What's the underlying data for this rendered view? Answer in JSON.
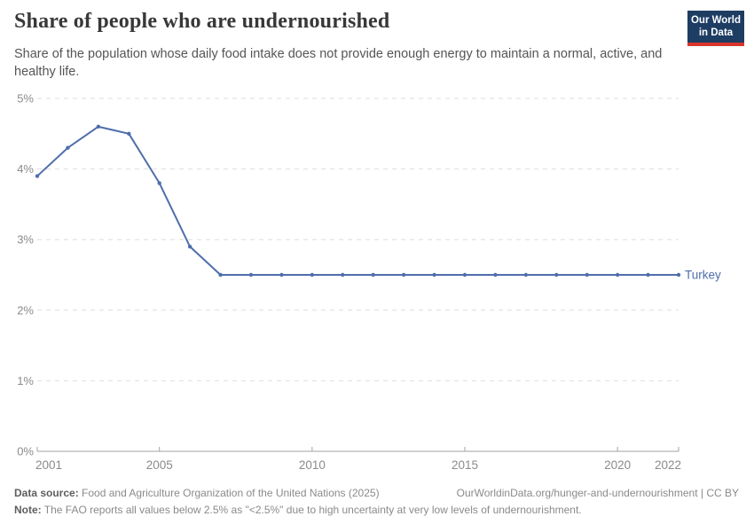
{
  "header": {
    "title": "Share of people who are undernourished",
    "logo": {
      "line1": "Our World",
      "line2": "in Data"
    }
  },
  "subtitle": "Share of the population whose daily food intake does not provide enough energy to maintain a normal, active, and healthy life.",
  "chart_data": {
    "type": "line",
    "title": "Share of people who are undernourished",
    "x": [
      2001,
      2002,
      2003,
      2004,
      2005,
      2006,
      2007,
      2008,
      2009,
      2010,
      2011,
      2012,
      2013,
      2014,
      2015,
      2016,
      2017,
      2018,
      2019,
      2020,
      2021,
      2022
    ],
    "series": [
      {
        "name": "Turkey",
        "values": [
          3.9,
          4.3,
          4.6,
          4.5,
          3.8,
          2.9,
          2.5,
          2.5,
          2.5,
          2.5,
          2.5,
          2.5,
          2.5,
          2.5,
          2.5,
          2.5,
          2.5,
          2.5,
          2.5,
          2.5,
          2.5,
          2.5
        ],
        "color": "#4f6eab"
      }
    ],
    "xlabel": "",
    "ylabel": "",
    "ylim": [
      0,
      5
    ],
    "yticks": [
      0,
      1,
      2,
      3,
      4,
      5
    ],
    "ytick_suffix": "%",
    "xticks": [
      2001,
      2005,
      2010,
      2015,
      2020,
      2022
    ],
    "grid": "horizontal-dashed",
    "legend_position": "line-end-label"
  },
  "colors": {
    "line": "#4f6eab",
    "grid": "#dedede",
    "axis": "#a3a3a3",
    "tick_label": "#8b8b8b",
    "logo_bg": "#1d3d63",
    "logo_stripe": "#d8352b"
  },
  "footer": {
    "datasource_label": "Data source:",
    "datasource_text": " Food and Agriculture Organization of the United Nations (2025)",
    "link": "OurWorldinData.org/hunger-and-undernourishment | CC BY",
    "note_label": "Note:",
    "note_text": " The FAO reports all values below 2.5% as \"<2.5%\" due to high uncertainty at very low levels of undernourishment."
  }
}
